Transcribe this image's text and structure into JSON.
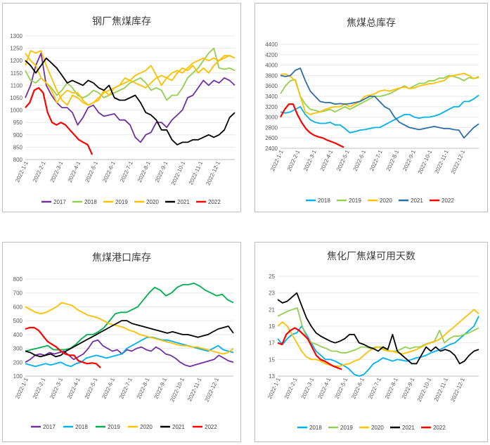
{
  "x_ticks": [
    "2022-1-1",
    "2022-2-1",
    "2022-3-1",
    "2022-4-1",
    "2022-5-1",
    "2022-6-1",
    "2022-7-1",
    "2022-8-1",
    "2022-9-1",
    "2022-10-1",
    "2022-11-1",
    "2022-12-1"
  ],
  "colors": {
    "2017": "#7030a0",
    "2018": "#92d050",
    "2018b": "#00b0f0",
    "2019": "#ffc000",
    "2019g": "#92d050",
    "2019d": "#00b050",
    "2020": "#ffc000",
    "2021": "#000000",
    "2022_blue": "#2e6ea6",
    "2022": "#ff0000"
  },
  "chart_data": [
    {
      "type": "line",
      "title": "钢厂焦煤库存",
      "ylim": [
        800,
        1300
      ],
      "yticks": [
        800,
        850,
        900,
        950,
        1000,
        1050,
        1100,
        1150,
        1200,
        1250,
        1300
      ],
      "series": [
        {
          "name": "2017",
          "color": "#7030a0",
          "values": [
            1050,
            1100,
            1180,
            1230,
            1100,
            1060,
            1030,
            1010,
            1010,
            990,
            940,
            970,
            1010,
            1020,
            990,
            975,
            980,
            985,
            960,
            960,
            940,
            890,
            870,
            900,
            910,
            950,
            950,
            930,
            960,
            980,
            1000,
            1050,
            1060,
            1090,
            1120,
            1100,
            1120,
            1110,
            1130,
            1120,
            1100
          ]
        },
        {
          "name": "2018",
          "color": "#92d050",
          "values": [
            1160,
            1120,
            1110,
            1130,
            1110,
            1090,
            1060,
            1080,
            1110,
            1090,
            1060,
            1050,
            1060,
            1080,
            1070,
            1050,
            1060,
            1070,
            1080,
            1090,
            1110,
            1120,
            1130,
            1110,
            1080,
            1090,
            1080,
            1040,
            1060,
            1060,
            1090,
            1130,
            1150,
            1170,
            1200,
            1230,
            1250,
            1170,
            1165,
            1170,
            1160
          ]
        },
        {
          "name": "2019",
          "color": "#ffc000",
          "values": [
            1180,
            1240,
            1230,
            1240,
            1180,
            1130,
            1080,
            1040,
            1020,
            1060,
            1050,
            1030,
            1020,
            1030,
            1040,
            1080,
            1060,
            1090,
            1100,
            1130,
            1120,
            1140,
            1150,
            1160,
            1180,
            1140,
            1100,
            1130,
            1120,
            1150,
            1170,
            1160,
            1180,
            1150,
            1170,
            1150,
            1180,
            1200,
            1220,
            1220,
            1210
          ]
        },
        {
          "name": "2020",
          "color": "#ffc000",
          "values": [
            1230,
            1200,
            1180,
            1130,
            1110,
            1080,
            1030,
            1060,
            1080,
            1070,
            1070,
            1040,
            1020,
            1030,
            1050,
            1070,
            1080,
            1090,
            1100,
            1110,
            1120,
            1110,
            1100,
            1090,
            1110,
            1130,
            1140,
            1130,
            1150,
            1160,
            1150,
            1170,
            1190,
            1200,
            1210,
            1200,
            1210,
            1200,
            1210,
            1220,
            1210
          ]
        },
        {
          "name": "2021",
          "color": "#000000",
          "values": [
            1200,
            1180,
            1150,
            1180,
            1210,
            1190,
            1170,
            1140,
            1110,
            1120,
            1110,
            1100,
            1120,
            1110,
            1090,
            1080,
            1100,
            1050,
            1040,
            1040,
            1050,
            1060,
            1030,
            990,
            980,
            960,
            920,
            920,
            880,
            860,
            870,
            870,
            880,
            880,
            890,
            900,
            890,
            900,
            920,
            970,
            990
          ]
        },
        {
          "name": "2022",
          "color": "#ff0000",
          "values": [
            1010,
            1030,
            1080,
            1090,
            1070,
            990,
            950,
            940,
            950,
            940,
            920,
            900,
            880,
            870,
            860,
            820
          ]
        }
      ],
      "legend": [
        "2017",
        "2018",
        "2019",
        "2020",
        "2021",
        "2022"
      ]
    },
    {
      "type": "line",
      "title": "焦煤总库存",
      "ylim": [
        2400,
        4400
      ],
      "yticks": [
        2400,
        2600,
        2800,
        3000,
        3200,
        3400,
        3600,
        3800,
        4000,
        4200,
        4400
      ],
      "series": [
        {
          "name": "2018",
          "color": "#00b0f0",
          "values": [
            3100,
            3080,
            3100,
            3150,
            3200,
            3050,
            2950,
            2900,
            2880,
            2880,
            2900,
            2850,
            2850,
            2780,
            2700,
            2720,
            2750,
            2760,
            2780,
            2800,
            2800,
            2850,
            2900,
            2950,
            3000,
            3050,
            3050,
            3000,
            2980,
            3000,
            3000,
            3020,
            3050,
            3100,
            3150,
            3200,
            3200,
            3300,
            3300,
            3350,
            3420
          ]
        },
        {
          "name": "2019",
          "color": "#92d050",
          "values": [
            3450,
            3600,
            3700,
            3720,
            3400,
            3250,
            3150,
            3130,
            3100,
            3120,
            3150,
            3100,
            3150,
            3200,
            3150,
            3200,
            3250,
            3300,
            3350,
            3400,
            3400,
            3420,
            3450,
            3500,
            3550,
            3600,
            3550,
            3600,
            3650,
            3650,
            3700,
            3700,
            3750,
            3750,
            3800,
            3780,
            3750,
            3700,
            3760,
            3740,
            3780
          ]
        },
        {
          "name": "2020",
          "color": "#ffc000",
          "values": [
            3820,
            3830,
            3780,
            3700,
            3400,
            3100,
            3050,
            3080,
            3100,
            3150,
            3180,
            3200,
            3200,
            3250,
            3200,
            3250,
            3300,
            3400,
            3420,
            3450,
            3500,
            3520,
            3500,
            3530,
            3560,
            3580,
            3550,
            3560,
            3600,
            3620,
            3640,
            3650,
            3680,
            3700,
            3780,
            3800,
            3820,
            3840,
            3800,
            3740,
            3760
          ]
        },
        {
          "name": "2021",
          "color": "#2e6ea6",
          "values": [
            3800,
            3780,
            3800,
            3900,
            3940,
            3700,
            3500,
            3400,
            3300,
            3280,
            3280,
            3250,
            3260,
            3250,
            3260,
            3280,
            3300,
            3350,
            3400,
            3400,
            3300,
            3200,
            3150,
            3000,
            2900,
            2850,
            2800,
            2780,
            2760,
            2780,
            2800,
            2820,
            2800,
            2780,
            2780,
            2760,
            2750,
            2600,
            2700,
            2800,
            2870
          ]
        },
        {
          "name": "2022",
          "color": "#ff0000",
          "values": [
            3000,
            3150,
            3250,
            3250,
            3050,
            2900,
            2780,
            2700,
            2650,
            2620,
            2600,
            2560,
            2530,
            2500,
            2460,
            2420
          ]
        }
      ],
      "legend": [
        "2018",
        "2019",
        "2020",
        "2021",
        "2022"
      ]
    },
    {
      "type": "line",
      "title": "焦煤港口库存",
      "ylim": [
        100,
        800
      ],
      "yticks": [
        100,
        200,
        300,
        400,
        500,
        600,
        700,
        800
      ],
      "series": [
        {
          "name": "2017",
          "color": "#7030a0",
          "values": [
            200,
            220,
            250,
            260,
            250,
            270,
            260,
            270,
            280,
            250,
            220,
            240,
            260,
            300,
            350,
            360,
            320,
            300,
            280,
            290,
            260,
            290,
            280,
            300,
            310,
            290,
            280,
            310,
            290,
            260,
            250,
            230,
            200,
            180,
            170,
            180,
            190,
            200,
            210,
            220,
            250,
            230,
            210,
            200
          ]
        },
        {
          "name": "2018",
          "color": "#00b0f0",
          "values": [
            190,
            180,
            170,
            180,
            190,
            180,
            190,
            200,
            180,
            170,
            190,
            200,
            230,
            240,
            250,
            240,
            230,
            240,
            250,
            260,
            300,
            320,
            340,
            360,
            380,
            380,
            370,
            360,
            360,
            350,
            340,
            330,
            320,
            310,
            300,
            290,
            280,
            300,
            320,
            290,
            280,
            270
          ]
        },
        {
          "name": "2019",
          "color": "#00b050",
          "values": [
            280,
            290,
            300,
            310,
            320,
            290,
            290,
            290,
            300,
            330,
            370,
            400,
            400,
            420,
            450,
            500,
            550,
            560,
            560,
            580,
            600,
            650,
            700,
            740,
            720,
            680,
            700,
            740,
            760,
            760,
            770,
            750,
            720,
            700,
            680,
            690,
            650,
            630
          ]
        },
        {
          "name": "2020",
          "color": "#ffc000",
          "values": [
            600,
            580,
            560,
            550,
            560,
            580,
            600,
            630,
            620,
            610,
            580,
            560,
            540,
            530,
            520,
            500,
            480,
            470,
            460,
            450,
            430,
            420,
            400,
            390,
            380,
            370,
            360,
            350,
            340,
            330,
            320,
            320,
            310,
            310,
            300,
            290,
            280,
            270,
            260,
            270,
            300
          ]
        },
        {
          "name": "2021",
          "color": "#000000",
          "values": [
            280,
            270,
            250,
            240,
            250,
            260,
            240,
            250,
            280,
            300,
            320,
            340,
            360,
            380,
            400,
            420,
            440,
            460,
            480,
            500,
            500,
            480,
            470,
            460,
            450,
            440,
            430,
            420,
            410,
            420,
            410,
            400,
            400,
            390,
            380,
            390,
            400,
            420,
            440,
            450,
            460,
            410
          ]
        },
        {
          "name": "2022",
          "color": "#ff0000",
          "values": [
            440,
            450,
            450,
            430,
            390,
            350,
            330,
            310,
            280,
            260,
            250,
            250,
            210,
            200,
            190,
            195,
            190,
            160
          ]
        }
      ],
      "legend": [
        "2017",
        "2018",
        "2019",
        "2020",
        "2021",
        "2022"
      ]
    },
    {
      "type": "line",
      "title": "焦化厂焦煤可用天数",
      "ylim": [
        13,
        25
      ],
      "yticks": [
        13,
        15,
        17,
        19,
        21,
        23,
        25
      ],
      "series": [
        {
          "name": "2018",
          "color": "#00b0f0",
          "values": [
            17.5,
            16.8,
            17.5,
            18,
            18.2,
            19,
            18,
            17,
            16,
            15.5,
            15,
            15,
            14.8,
            14.5,
            14.2,
            13.8,
            13.2,
            13,
            13.2,
            13.8,
            14.5,
            14.8,
            15.2,
            15,
            14.8,
            15,
            14.9,
            14.8,
            15,
            15.2,
            15.3,
            15.5,
            15.8,
            16,
            16.2,
            16.5,
            16.8,
            17,
            17.5,
            18,
            18.5,
            19,
            20.2
          ]
        },
        {
          "name": "2019",
          "color": "#92d050",
          "values": [
            20.2,
            20.5,
            20.8,
            21,
            21.2,
            19,
            17.5,
            17,
            16.8,
            16.5,
            16.3,
            16,
            16,
            15.8,
            15.8,
            16,
            16.2,
            16.5,
            16.5,
            16.3,
            16.5,
            16.5,
            16.2,
            16,
            16,
            16.2,
            16.5,
            16.3,
            16.5,
            16.5,
            16.8,
            17,
            17.2,
            18.5,
            17,
            17.5,
            17.8,
            17.8,
            18,
            18.2,
            18.5,
            18.8
          ]
        },
        {
          "name": "2020",
          "color": "#ffc000",
          "values": [
            19,
            19.5,
            19,
            18,
            17,
            16,
            15.3,
            15,
            15,
            14.8,
            14.5,
            14.3,
            14.2,
            14.2,
            14.4,
            14.5,
            14.8,
            15,
            15.5,
            16,
            16.3,
            16.5,
            16.2,
            16,
            16,
            15.8,
            15.7,
            15.8,
            16,
            16.2,
            16.5,
            16.8,
            17,
            17.2,
            17.5,
            18,
            18.5,
            19,
            19.5,
            20,
            20.5,
            21,
            20.5
          ]
        },
        {
          "name": "2021",
          "color": "#000000",
          "values": [
            22.2,
            21.8,
            22,
            22.5,
            23,
            21.5,
            20,
            19,
            18.2,
            17.8,
            17.5,
            17.2,
            17,
            17.2,
            17.5,
            18,
            18,
            17,
            16.8,
            16.5,
            16.3,
            16,
            16.5,
            16.2,
            18,
            16,
            15.5,
            15,
            14.5,
            14.5,
            15.5,
            16.5,
            16,
            16.5,
            16,
            16.2,
            16,
            15.5,
            14.5,
            14.8,
            15.5,
            16,
            16.2
          ]
        },
        {
          "name": "2022",
          "color": "#ff0000",
          "values": [
            17,
            16.8,
            18,
            18.5,
            18.8,
            18.5,
            18,
            17.5,
            16.5,
            15.5,
            15,
            14.8,
            14.5,
            14.2,
            14,
            13.8
          ]
        }
      ],
      "legend": [
        "2018",
        "2019",
        "2020",
        "2021",
        "2022"
      ]
    }
  ]
}
